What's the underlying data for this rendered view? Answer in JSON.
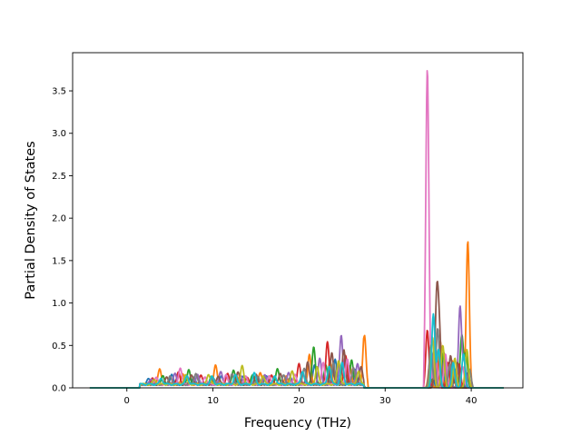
{
  "chart_data": {
    "type": "line",
    "title": "",
    "xlabel": "Frequency (THz)",
    "ylabel": "Partial Density of States",
    "xlim": [
      -6.3,
      46.0
    ],
    "ylim": [
      0.0,
      3.95
    ],
    "xticks": [
      0,
      10,
      20,
      30,
      40
    ],
    "yticks": [
      0.0,
      0.5,
      1.0,
      1.5,
      2.0,
      2.5,
      3.0,
      3.5
    ],
    "xtick_labels": [
      "0",
      "10",
      "20",
      "30",
      "40"
    ],
    "ytick_labels": [
      "0.0",
      "0.5",
      "1.0",
      "1.5",
      "2.0",
      "2.5",
      "3.0",
      "3.5"
    ],
    "grid": false,
    "legend": "none",
    "baseline_range": [
      -4.3,
      43.8
    ],
    "series_colors": [
      "#1f77b4",
      "#ff7f0e",
      "#2ca02c",
      "#d62728",
      "#9467bd",
      "#8c564b",
      "#e377c2",
      "#7f7f7f",
      "#bcbd22",
      "#17becf"
    ],
    "series": [
      {
        "color": "#1f77b4",
        "peaks": [
          [
            2.5,
            0.06
          ],
          [
            5.2,
            0.12
          ],
          [
            7.8,
            0.08
          ],
          [
            11.0,
            0.1
          ],
          [
            13.5,
            0.09
          ],
          [
            16.2,
            0.11
          ],
          [
            19.0,
            0.08
          ],
          [
            21.8,
            0.22
          ],
          [
            24.2,
            0.3
          ],
          [
            26.5,
            0.18
          ],
          [
            35.4,
            0.35
          ],
          [
            36.6,
            0.28
          ],
          [
            38.2,
            0.22
          ],
          [
            39.6,
            0.18
          ]
        ]
      },
      {
        "color": "#ff7f0e",
        "peaks": [
          [
            3.8,
            0.19
          ],
          [
            6.5,
            0.12
          ],
          [
            10.3,
            0.22
          ],
          [
            12.8,
            0.1
          ],
          [
            15.5,
            0.13
          ],
          [
            18.5,
            0.09
          ],
          [
            21.2,
            0.35
          ],
          [
            23.6,
            0.28
          ],
          [
            25.9,
            0.22
          ],
          [
            27.6,
            0.62
          ],
          [
            35.2,
            0.3
          ],
          [
            36.4,
            0.55
          ],
          [
            37.8,
            0.32
          ],
          [
            39.6,
            1.73
          ]
        ]
      },
      {
        "color": "#2ca02c",
        "peaks": [
          [
            4.2,
            0.1
          ],
          [
            7.2,
            0.17
          ],
          [
            9.8,
            0.09
          ],
          [
            12.4,
            0.17
          ],
          [
            14.6,
            0.12
          ],
          [
            17.5,
            0.19
          ],
          [
            21.7,
            0.45
          ],
          [
            23.1,
            0.22
          ],
          [
            26.1,
            0.28
          ],
          [
            35.7,
            0.45
          ],
          [
            36.8,
            0.42
          ],
          [
            38.9,
            0.62
          ],
          [
            39.4,
            0.4
          ]
        ]
      },
      {
        "color": "#d62728",
        "peaks": [
          [
            3.0,
            0.08
          ],
          [
            6.0,
            0.15
          ],
          [
            8.6,
            0.1
          ],
          [
            11.7,
            0.12
          ],
          [
            14.0,
            0.08
          ],
          [
            16.8,
            0.1
          ],
          [
            20.0,
            0.24
          ],
          [
            23.3,
            0.51
          ],
          [
            25.4,
            0.35
          ],
          [
            34.9,
            0.68
          ],
          [
            35.9,
            0.42
          ],
          [
            37.3,
            0.3
          ],
          [
            38.6,
            0.28
          ]
        ]
      },
      {
        "color": "#9467bd",
        "peaks": [
          [
            2.8,
            0.07
          ],
          [
            5.6,
            0.13
          ],
          [
            8.2,
            0.11
          ],
          [
            10.9,
            0.16
          ],
          [
            13.2,
            0.1
          ],
          [
            16.0,
            0.12
          ],
          [
            18.8,
            0.14
          ],
          [
            22.4,
            0.3
          ],
          [
            24.9,
            0.58
          ],
          [
            26.8,
            0.24
          ],
          [
            35.6,
            0.4
          ],
          [
            36.9,
            0.35
          ],
          [
            38.7,
            0.96
          ],
          [
            39.2,
            0.3
          ]
        ]
      },
      {
        "color": "#8c564b",
        "peaks": [
          [
            4.6,
            0.09
          ],
          [
            7.5,
            0.12
          ],
          [
            10.6,
            0.1
          ],
          [
            12.9,
            0.14
          ],
          [
            15.0,
            0.11
          ],
          [
            17.8,
            0.13
          ],
          [
            21.0,
            0.26
          ],
          [
            23.8,
            0.38
          ],
          [
            25.2,
            0.4
          ],
          [
            27.2,
            0.2
          ],
          [
            36.0,
            1.07
          ],
          [
            36.3,
            0.6
          ],
          [
            37.6,
            0.38
          ],
          [
            38.4,
            0.3
          ]
        ]
      },
      {
        "color": "#e377c2",
        "peaks": [
          [
            3.4,
            0.08
          ],
          [
            6.2,
            0.2
          ],
          [
            9.1,
            0.09
          ],
          [
            11.5,
            0.11
          ],
          [
            13.8,
            0.09
          ],
          [
            16.5,
            0.1
          ],
          [
            19.5,
            0.12
          ],
          [
            22.8,
            0.25
          ],
          [
            25.6,
            0.3
          ],
          [
            34.9,
            3.76
          ],
          [
            35.8,
            0.55
          ],
          [
            37.0,
            0.4
          ],
          [
            39.0,
            0.25
          ]
        ]
      },
      {
        "color": "#7f7f7f",
        "peaks": [
          [
            5.0,
            0.1
          ],
          [
            8.0,
            0.13
          ],
          [
            10.0,
            0.08
          ],
          [
            12.2,
            0.12
          ],
          [
            15.2,
            0.09
          ],
          [
            18.2,
            0.11
          ],
          [
            20.6,
            0.18
          ],
          [
            24.0,
            0.26
          ],
          [
            26.3,
            0.2
          ],
          [
            35.3,
            0.5
          ],
          [
            36.1,
            0.7
          ],
          [
            37.5,
            0.28
          ],
          [
            39.8,
            0.22
          ]
        ]
      },
      {
        "color": "#bcbd22",
        "peaks": [
          [
            3.2,
            0.05
          ],
          [
            6.8,
            0.11
          ],
          [
            9.5,
            0.12
          ],
          [
            13.4,
            0.22
          ],
          [
            15.8,
            0.1
          ],
          [
            19.2,
            0.15
          ],
          [
            22.1,
            0.2
          ],
          [
            24.6,
            0.28
          ],
          [
            26.9,
            0.16
          ],
          [
            35.5,
            0.6
          ],
          [
            36.7,
            0.5
          ],
          [
            38.1,
            0.35
          ],
          [
            39.5,
            0.45
          ]
        ]
      },
      {
        "color": "#17becf",
        "peaks": [
          [
            4.0,
            0.07
          ],
          [
            7.0,
            0.1
          ],
          [
            9.9,
            0.09
          ],
          [
            12.6,
            0.11
          ],
          [
            14.8,
            0.13
          ],
          [
            17.2,
            0.1
          ],
          [
            20.4,
            0.16
          ],
          [
            23.5,
            0.22
          ],
          [
            25.0,
            0.25
          ],
          [
            35.6,
            0.87
          ],
          [
            36.2,
            0.45
          ],
          [
            37.9,
            0.3
          ],
          [
            39.1,
            0.4
          ]
        ]
      }
    ]
  }
}
